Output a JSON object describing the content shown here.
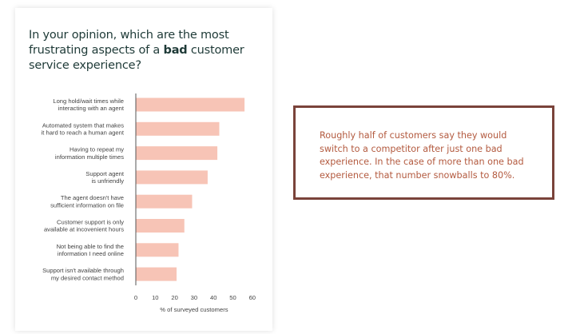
{
  "colors": {
    "bar": "#f7c4b6",
    "title": "#1e3a37",
    "callout_border": "#7a433a",
    "callout_text": "#b35a3f",
    "axis": "#555555",
    "label": "#444444"
  },
  "survey_card": {
    "title_before": "In your opinion, which are the most frustrating aspects of a ",
    "title_bold": "bad",
    "title_after": " customer service experience?"
  },
  "callout": {
    "text": "Roughly half of customers say they would switch to a competitor after just one bad experience. In the case of more than one bad experience, that number snowballs to 80%."
  },
  "chart_data": {
    "type": "bar",
    "orientation": "horizontal",
    "title": "In your opinion, which are the most frustrating aspects of a bad customer service experience?",
    "xlabel": "% of surveyed customers",
    "ylabel": "",
    "xlim": [
      0,
      60
    ],
    "xticks": [
      0,
      10,
      20,
      30,
      40,
      50,
      60
    ],
    "grid": false,
    "categories": [
      [
        "Long hold/wait times while",
        "interacting with an agent"
      ],
      [
        "Automated system that makes",
        "it hard to reach a human agent"
      ],
      [
        "Having to repeat my",
        "information multiple times"
      ],
      [
        "Support agent",
        "is unfriendly"
      ],
      [
        "The agent doesn't have",
        "sufficient information on file"
      ],
      [
        "Customer support is only",
        "available at incovenient hours"
      ],
      [
        "Not being able to find the",
        "information I need online"
      ],
      [
        "Support isn't available through",
        "my desired contact method"
      ]
    ],
    "values": [
      56,
      43,
      42,
      37,
      29,
      25,
      22,
      21
    ]
  }
}
